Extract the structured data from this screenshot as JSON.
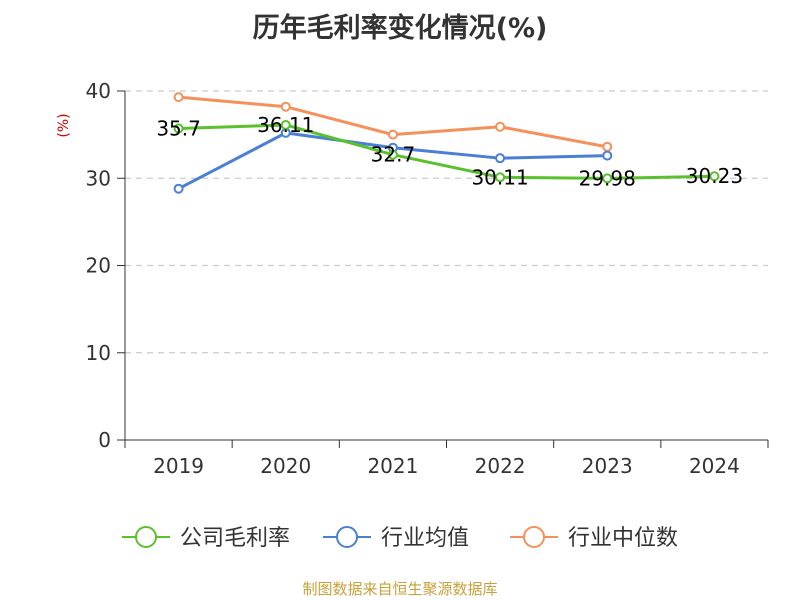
{
  "chart_data": {
    "type": "line",
    "title": "历年毛利率变化情况(%)",
    "ylabel": "(%)",
    "xlabel": "",
    "categories": [
      "2019",
      "2020",
      "2021",
      "2022",
      "2023",
      "2024"
    ],
    "ylim": [
      0,
      40
    ],
    "yticks": [
      0,
      10,
      20,
      30,
      40
    ],
    "grid": true,
    "legend_position": "bottom",
    "series": [
      {
        "name": "公司毛利率",
        "color": "#5ac02c",
        "values": [
          35.7,
          36.11,
          32.7,
          30.11,
          29.98,
          30.23
        ],
        "data_labels": [
          "35.7",
          "36.11",
          "32.7",
          "30.11",
          "29.98",
          "30.23"
        ]
      },
      {
        "name": "行业均值",
        "color": "#4a7fd6",
        "values": [
          28.8,
          35.2,
          33.5,
          32.3,
          32.6,
          null
        ]
      },
      {
        "name": "行业中位数",
        "color": "#f5905a",
        "values": [
          39.3,
          38.2,
          35.0,
          35.9,
          33.6,
          null
        ]
      }
    ]
  },
  "footer": {
    "source": "制图数据来自恒生聚源数据库"
  }
}
